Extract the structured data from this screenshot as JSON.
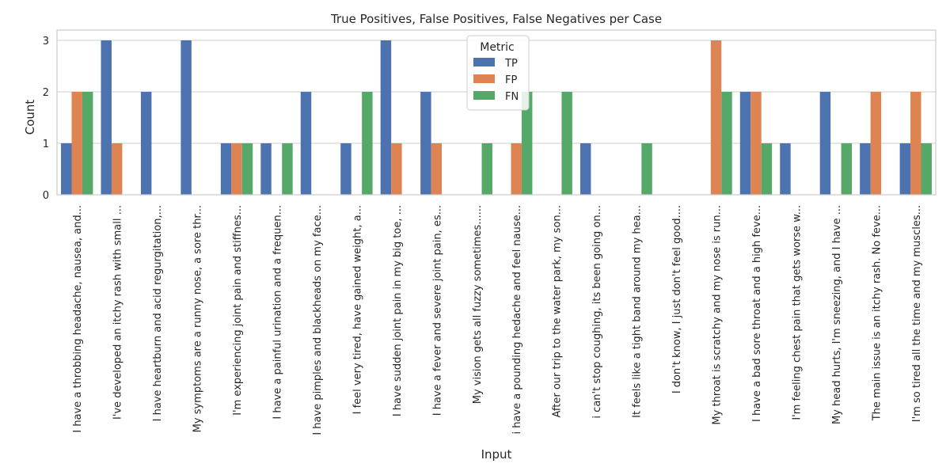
{
  "chart_data": {
    "type": "bar",
    "title": "True Positives, False Positives, False Negatives per Case",
    "xlabel": "Input",
    "ylabel": "Count",
    "ylim": [
      0,
      3.2
    ],
    "yticks": [
      0,
      1,
      2,
      3
    ],
    "grid": true,
    "legend": {
      "title": "Metric",
      "placement": "top-center"
    },
    "categories": [
      "I have a throbbing headache, nausea, and...",
      "I've developed an itchy rash with small ...",
      "I have heartburn and acid regurgitation,...",
      "My symptoms are a runny nose, a sore thr...",
      "I'm experiencing joint pain and stiffnes...",
      "I have a painful urination and a frequen...",
      "I have pimples and blackheads on my face...",
      "I feel very tired, have gained weight, a...",
      "I have sudden joint pain in my big toe, ...",
      "I have a fever and severe joint pain, es...",
      "My vision gets all fuzzy sometimes......",
      "i have a pounding hedache and feel nause...",
      "After our trip to the water park, my son...",
      "i can't stop coughing, its been going on...",
      "It feels like a tight band around my hea...",
      "I don't know, I just don't feel good....",
      "My throat is scratchy and my nose is run...",
      "I have a bad sore throat and a high feve...",
      "I'm feeling chest pain that gets worse w...",
      "My head hurts, I'm sneezing, and I have ...",
      "The main issue is an itchy rash. No feve...",
      "I'm so tired all the time and my muscles..."
    ],
    "series": [
      {
        "name": "TP",
        "color": "#4c72b0",
        "values": [
          1,
          3,
          2,
          3,
          1,
          1,
          2,
          1,
          3,
          2,
          0,
          0,
          0,
          1,
          0,
          0,
          0,
          2,
          1,
          2,
          1,
          1
        ]
      },
      {
        "name": "FP",
        "color": "#dd8452",
        "values": [
          2,
          1,
          0,
          0,
          1,
          0,
          0,
          0,
          1,
          1,
          0,
          1,
          0,
          0,
          0,
          0,
          3,
          2,
          0,
          0,
          2,
          2
        ]
      },
      {
        "name": "FN",
        "color": "#55a868",
        "values": [
          2,
          0,
          0,
          0,
          1,
          1,
          0,
          2,
          0,
          0,
          1,
          2,
          2,
          0,
          1,
          0,
          2,
          1,
          0,
          1,
          0,
          1
        ]
      }
    ]
  }
}
